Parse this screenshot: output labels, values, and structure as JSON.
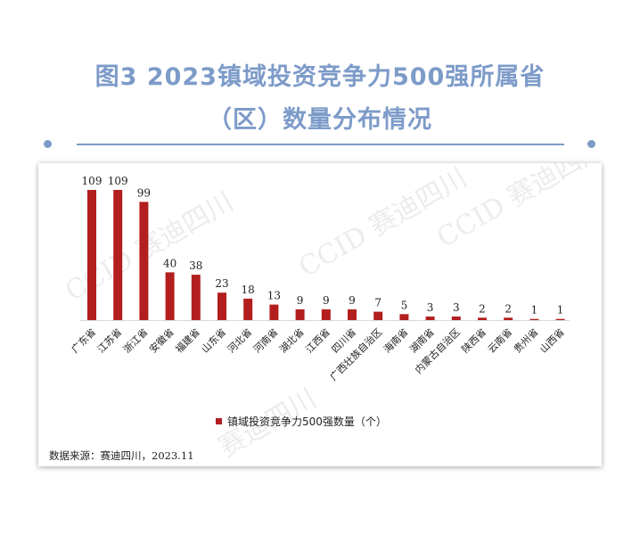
{
  "header": {
    "title_line1": "图3  2023镇域投资竞争力500强所属省",
    "title_line2": "（区）数量分布情况"
  },
  "colors": {
    "accent": "#7d9bc9",
    "bar": "#b31e1e"
  },
  "chart_data": {
    "type": "bar",
    "title": "图3  2023镇域投资竞争力500强所属省（区）数量分布情况",
    "categories": [
      "广东省",
      "江苏省",
      "浙江省",
      "安徽省",
      "福建省",
      "山东省",
      "河北省",
      "河南省",
      "湖北省",
      "江西省",
      "四川省",
      "广西壮族自治区",
      "海南省",
      "湖南省",
      "内蒙古自治区",
      "陕西省",
      "云南省",
      "贵州省",
      "山西省"
    ],
    "series": [
      {
        "name": "镇域投资竞争力500强数量（个）",
        "values": [
          109,
          109,
          99,
          40,
          38,
          23,
          18,
          13,
          9,
          9,
          9,
          7,
          5,
          3,
          3,
          2,
          2,
          1,
          1
        ]
      }
    ],
    "grid": false,
    "legend_position": "bottom"
  },
  "legend": {
    "label": "镇域投资竞争力500强数量（个）"
  },
  "source": "数据来源：赛迪四川，2023.11",
  "watermarks": [
    "CCID 赛迪四川",
    "CCID 赛迪四川",
    "CCID 赛迪四川",
    "赛迪四川"
  ]
}
